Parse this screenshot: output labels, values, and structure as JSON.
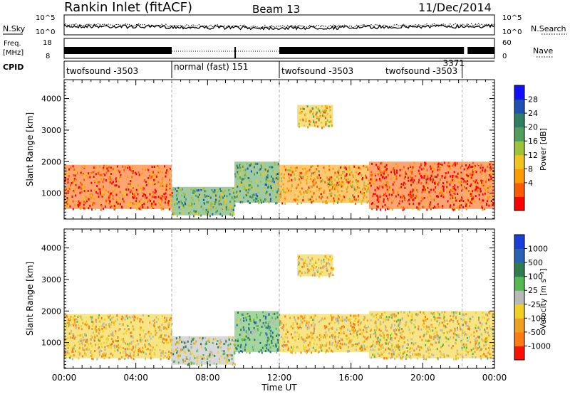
{
  "header": {
    "station": "Rankin Inlet (fitACF)",
    "beam": "Beam 13",
    "date": "11/Dec/2014"
  },
  "aux_panels": {
    "nsky": {
      "label": "N.Sky",
      "ticks_left": [
        "10^5",
        "10^0"
      ],
      "right_label": "N.Search",
      "ticks_right": [
        "10^5",
        "10^0"
      ]
    },
    "freq": {
      "label_line1": "Freq.",
      "label_line2": "[MHz]",
      "ticks_left": [
        "18",
        "8"
      ],
      "right_label": "Nave",
      "ticks_right": [
        "60",
        "0"
      ]
    },
    "cpid": {
      "label": "CPID",
      "segments": [
        {
          "label": "twofsound -3503",
          "start": 0.0,
          "end": 6.0
        },
        {
          "label": "normal (fast) 151",
          "start": 6.0,
          "end": 12.0
        },
        {
          "label": "twofsound -3503",
          "start": 12.0,
          "end": 22.2
        },
        {
          "label": "twofsound -3503",
          "start": 17.8,
          "end": 22.2
        },
        {
          "label": "3371",
          "start": 21.0,
          "end": 22.2
        }
      ]
    }
  },
  "panels": {
    "power": {
      "ylabel": "Slant Range [km]",
      "yticks": [
        "4000",
        "3000",
        "2000",
        "1000"
      ],
      "colorbar": {
        "label": "Power [dB]",
        "labels": [
          "28",
          "24",
          "20",
          "16",
          "12",
          "8",
          "4"
        ],
        "colors": [
          "#1010ff",
          "#2050b0",
          "#2f7d63",
          "#4f9e5a",
          "#9cc23a",
          "#f0c420",
          "#ff9a00",
          "#ff5a00",
          "#ff0000"
        ]
      }
    },
    "velocity": {
      "ylabel": "Slant Range [km]",
      "yticks": [
        "4000",
        "3000",
        "2000",
        "1000"
      ],
      "colorbar": {
        "label": "Velocity [m s⁻¹]",
        "labels": [
          "1000",
          "500",
          "100",
          "25",
          "-25",
          "-100",
          "-500",
          "-1000"
        ],
        "colors": [
          "#1a3fd8",
          "#2b63b3",
          "#2f7d4f",
          "#55b850",
          "#b8b8b8",
          "#f0d020",
          "#f0a020",
          "#ff7a10",
          "#ff1000"
        ]
      }
    }
  },
  "xaxis": {
    "label": "Time UT",
    "ticks": [
      "00:00",
      "04:00",
      "08:00",
      "12:00",
      "16:00",
      "20:00",
      "00:00"
    ]
  },
  "chart_data": [
    {
      "type": "heatmap",
      "title": "Rankin Inlet (fitACF) Beam 13 11/Dec/2014",
      "quantity": "Power [dB]",
      "xlabel": "Time UT",
      "ylabel": "Slant Range [km]",
      "x_range_hours": [
        0,
        24
      ],
      "ylim": [
        180,
        4600
      ],
      "colorbar_range": [
        0,
        32
      ],
      "features": [
        {
          "x_hours": [
            0.0,
            6.0
          ],
          "range_km": [
            500,
            1900
          ],
          "value_db": 26
        },
        {
          "x_hours": [
            6.0,
            9.5
          ],
          "range_km": [
            300,
            1200
          ],
          "value_db": 14
        },
        {
          "x_hours": [
            9.5,
            12.0
          ],
          "range_km": [
            700,
            2000
          ],
          "value_db": 14
        },
        {
          "x_hours": [
            12.0,
            17.0
          ],
          "range_km": [
            700,
            1900
          ],
          "value_db": 22
        },
        {
          "x_hours": [
            17.0,
            24.0
          ],
          "range_km": [
            500,
            2000
          ],
          "value_db": 28
        },
        {
          "x_hours": [
            13.0,
            15.0
          ],
          "range_km": [
            3100,
            3800
          ],
          "value_db": 20
        }
      ]
    },
    {
      "type": "heatmap",
      "title": "Rankin Inlet (fitACF) Beam 13 11/Dec/2014",
      "quantity": "Velocity [m s⁻¹]",
      "xlabel": "Time UT",
      "ylabel": "Slant Range [km]",
      "x_range_hours": [
        0,
        24
      ],
      "ylim": [
        180,
        4600
      ],
      "colorbar_range": [
        -1000,
        1000
      ],
      "features": [
        {
          "x_hours": [
            0.0,
            6.0
          ],
          "range_km": [
            500,
            1900
          ],
          "value_ms": -300
        },
        {
          "x_hours": [
            6.0,
            9.5
          ],
          "range_km": [
            300,
            1200
          ],
          "value_ms": 0
        },
        {
          "x_hours": [
            9.5,
            12.0
          ],
          "range_km": [
            700,
            2000
          ],
          "value_ms": 300
        },
        {
          "x_hours": [
            12.0,
            17.0
          ],
          "range_km": [
            700,
            1900
          ],
          "value_ms": -300
        },
        {
          "x_hours": [
            17.0,
            24.0
          ],
          "range_km": [
            500,
            2000
          ],
          "value_ms": -200
        },
        {
          "x_hours": [
            13.0,
            15.0
          ],
          "range_km": [
            3100,
            3800
          ],
          "value_ms": -300
        }
      ]
    }
  ]
}
